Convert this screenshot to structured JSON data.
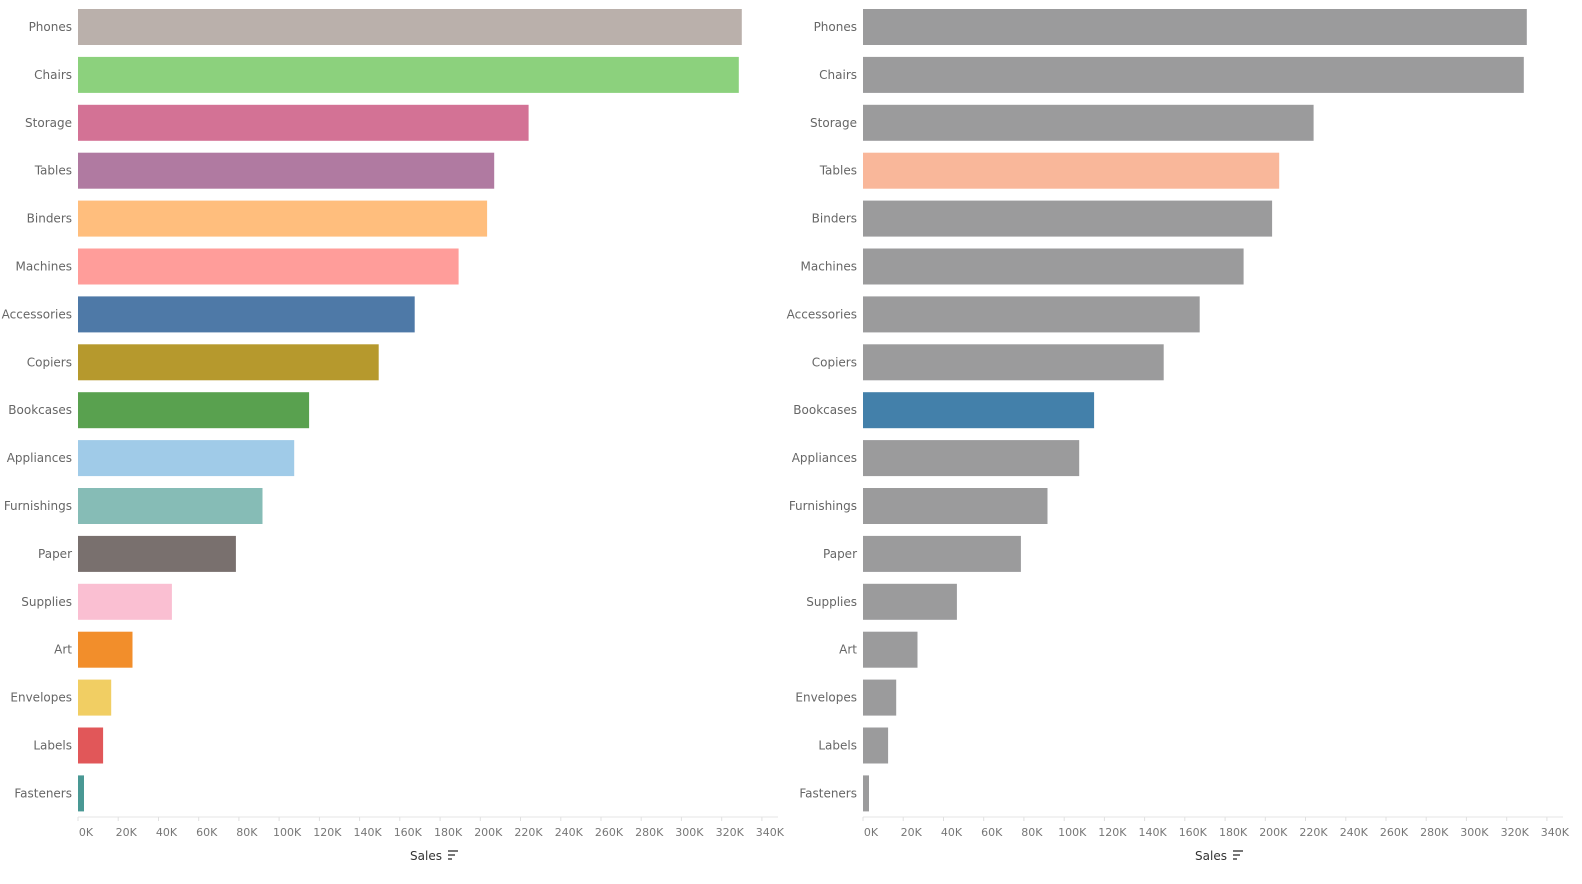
{
  "chart_data": [
    {
      "type": "bar",
      "orientation": "horizontal",
      "categories": [
        "Phones",
        "Chairs",
        "Storage",
        "Tables",
        "Binders",
        "Machines",
        "Accessories",
        "Copiers",
        "Bookcases",
        "Appliances",
        "Furnishings",
        "Paper",
        "Supplies",
        "Art",
        "Envelopes",
        "Labels",
        "Fasteners"
      ],
      "values": [
        330000,
        328500,
        224000,
        206900,
        203400,
        189200,
        167400,
        149500,
        114900,
        107500,
        91700,
        78500,
        46700,
        27100,
        16500,
        12500,
        3000
      ],
      "colors": [
        "#bab0ab",
        "#8cd17d",
        "#d37295",
        "#b07aa1",
        "#ffbe7d",
        "#ff9d9a",
        "#4e79a7",
        "#b6992d",
        "#59a14f",
        "#a0cbe8",
        "#86bcb6",
        "#79706e",
        "#fabfd2",
        "#f28e2b",
        "#f1ce63",
        "#e15759",
        "#499894"
      ],
      "xlabel": "Sales",
      "xlim": [
        0,
        350000
      ],
      "xticks": [
        "0K",
        "20K",
        "40K",
        "60K",
        "80K",
        "100K",
        "120K",
        "140K",
        "160K",
        "180K",
        "200K",
        "220K",
        "240K",
        "260K",
        "280K",
        "300K",
        "320K",
        "340K"
      ],
      "grid": false
    },
    {
      "type": "bar",
      "orientation": "horizontal",
      "categories": [
        "Phones",
        "Chairs",
        "Storage",
        "Tables",
        "Binders",
        "Machines",
        "Accessories",
        "Copiers",
        "Bookcases",
        "Appliances",
        "Furnishings",
        "Paper",
        "Supplies",
        "Art",
        "Envelopes",
        "Labels",
        "Fasteners"
      ],
      "values": [
        330000,
        328500,
        224000,
        206900,
        203400,
        189200,
        167400,
        149500,
        114900,
        107500,
        91700,
        78500,
        46700,
        27100,
        16500,
        12500,
        3000
      ],
      "colors": [
        "#9b9b9c",
        "#9b9b9c",
        "#9b9b9c",
        "#f9b79a",
        "#9b9b9c",
        "#9b9b9c",
        "#9b9b9c",
        "#9b9b9c",
        "#4380aa",
        "#9b9b9c",
        "#9b9b9c",
        "#9b9b9c",
        "#9b9b9c",
        "#9b9b9c",
        "#9b9b9c",
        "#9b9b9c",
        "#9b9b9c"
      ],
      "xlabel": "Sales",
      "xlim": [
        0,
        350000
      ],
      "xticks": [
        "0K",
        "20K",
        "40K",
        "60K",
        "80K",
        "100K",
        "120K",
        "140K",
        "160K",
        "180K",
        "200K",
        "220K",
        "240K",
        "260K",
        "280K",
        "300K",
        "320K",
        "340K"
      ],
      "grid": false
    }
  ]
}
